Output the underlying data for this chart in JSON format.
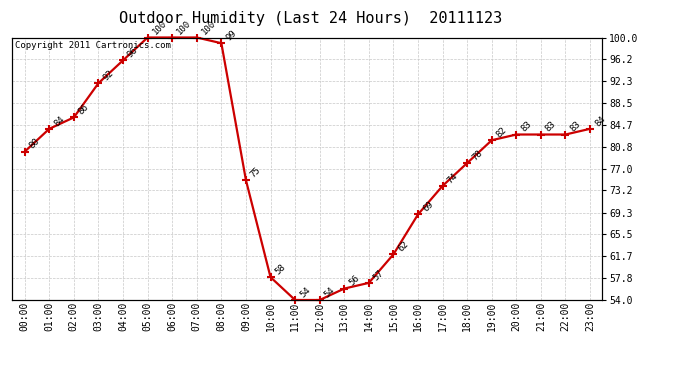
{
  "title": "Outdoor Humidity (Last 24 Hours)  20111123",
  "copyright": "Copyright 2011 Cartronics.com",
  "x_labels": [
    "00:00",
    "01:00",
    "02:00",
    "03:00",
    "04:00",
    "05:00",
    "06:00",
    "07:00",
    "08:00",
    "09:00",
    "10:00",
    "11:00",
    "12:00",
    "13:00",
    "14:00",
    "15:00",
    "16:00",
    "17:00",
    "18:00",
    "19:00",
    "20:00",
    "21:00",
    "22:00",
    "23:00"
  ],
  "hours": [
    0,
    1,
    2,
    3,
    4,
    5,
    6,
    7,
    8,
    9,
    10,
    11,
    12,
    13,
    14,
    15,
    16,
    17,
    18,
    19,
    20,
    21,
    22,
    23
  ],
  "values": [
    80,
    84,
    86,
    92,
    96,
    100,
    100,
    100,
    99,
    75,
    58,
    54,
    54,
    56,
    57,
    62,
    69,
    74,
    78,
    82,
    83,
    83,
    83,
    84
  ],
  "ylim_min": 54.0,
  "ylim_max": 100.0,
  "yticks": [
    54.0,
    57.8,
    61.7,
    65.5,
    69.3,
    73.2,
    77.0,
    80.8,
    84.7,
    88.5,
    92.3,
    96.2,
    100.0
  ],
  "ytick_labels": [
    "54.0",
    "57.8",
    "61.7",
    "65.5",
    "69.3",
    "73.2",
    "77.0",
    "80.8",
    "84.7",
    "88.5",
    "92.3",
    "96.2",
    "100.0"
  ],
  "line_color": "#cc0000",
  "marker_color": "#cc0000",
  "bg_color": "#ffffff",
  "grid_color": "#c8c8c8",
  "title_fontsize": 11,
  "label_fontsize": 6.5,
  "tick_fontsize": 7,
  "copyright_fontsize": 6.5,
  "label_rotation": 45
}
